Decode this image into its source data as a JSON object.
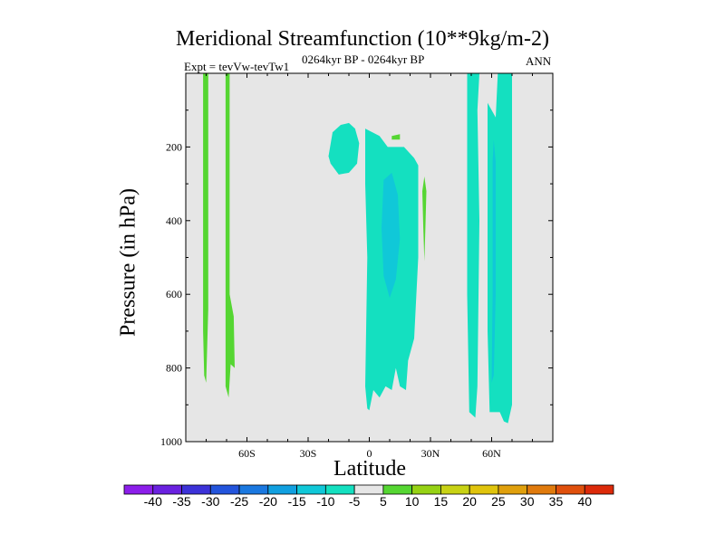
{
  "chart_data": {
    "type": "contour",
    "title": "Meridional Streamfunction (10**9kg/m-2)",
    "experiment_label": "Expt = tevVw-tevTw1",
    "date_range": "0264kyr BP - 0264kyr BP",
    "season": "ANN",
    "xlabel": "Latitude",
    "ylabel": "Pressure (in hPa)",
    "xlim": [
      -90,
      90
    ],
    "ylim": [
      1000,
      0
    ],
    "x_ticks": [
      {
        "value": -60,
        "label": "60S"
      },
      {
        "value": -30,
        "label": "30S"
      },
      {
        "value": 0,
        "label": "0"
      },
      {
        "value": 30,
        "label": "30N"
      },
      {
        "value": 60,
        "label": "60N"
      }
    ],
    "y_ticks": [
      {
        "value": 200,
        "label": "200"
      },
      {
        "value": 400,
        "label": "400"
      },
      {
        "value": 600,
        "label": "600"
      },
      {
        "value": 800,
        "label": "800"
      },
      {
        "value": 1000,
        "label": "1000"
      }
    ],
    "background_color": "#e6e6e6",
    "colorbar": {
      "levels": [
        -40,
        -35,
        -30,
        -25,
        -20,
        -15,
        -10,
        -5,
        5,
        10,
        15,
        20,
        25,
        30,
        35,
        40
      ],
      "labels": [
        "-40",
        "-35",
        "-30",
        "-25",
        "-20",
        "-15",
        "-10",
        "-5",
        "5",
        "10",
        "15",
        "20",
        "25",
        "30",
        "35",
        "40"
      ],
      "colors": [
        "#8c1eea",
        "#6a21e0",
        "#3c32d8",
        "#2354dc",
        "#1a78e0",
        "#11a0e0",
        "#10c8d8",
        "#14e0c0",
        "#e6e6e6",
        "#55d632",
        "#96d214",
        "#c8d214",
        "#e0c40c",
        "#e0a00c",
        "#e07a0c",
        "#e0500c",
        "#dc2a0a"
      ]
    },
    "regions": [
      {
        "name": "sh-polar-band-a",
        "level": "5 to 10",
        "color": "#55d632",
        "points": [
          [
            -81.5,
            0
          ],
          [
            -79,
            0
          ],
          [
            -79,
            640
          ],
          [
            -80,
            840
          ],
          [
            -81,
            820
          ],
          [
            -81.5,
            700
          ]
        ]
      },
      {
        "name": "sh-polar-band-b",
        "level": "5 to 10",
        "color": "#55d632",
        "points": [
          [
            -70.5,
            0
          ],
          [
            -68.5,
            0
          ],
          [
            -68.5,
            600
          ],
          [
            -66.5,
            660
          ],
          [
            -66,
            800
          ],
          [
            -68,
            790
          ],
          [
            -69,
            880
          ],
          [
            -70.5,
            850
          ]
        ]
      },
      {
        "name": "sh-subtropical-upper-cell",
        "level": "-10 to -5",
        "color": "#14e0c0",
        "points": [
          [
            -20,
            225
          ],
          [
            -18,
            160
          ],
          [
            -14,
            140
          ],
          [
            -10,
            135
          ],
          [
            -7,
            150
          ],
          [
            -5,
            190
          ],
          [
            -6,
            245
          ],
          [
            -10,
            270
          ],
          [
            -15,
            275
          ],
          [
            -19,
            245
          ]
        ]
      },
      {
        "name": "tropical-upper-green-dot",
        "level": "5 to 10",
        "color": "#55d632",
        "points": [
          [
            11,
            170
          ],
          [
            15,
            165
          ],
          [
            15,
            180
          ],
          [
            11,
            180
          ]
        ]
      },
      {
        "name": "tropical-main-cell-outer",
        "level": "-10 to -5",
        "color": "#14e0c0",
        "points": [
          [
            -2,
            150
          ],
          [
            5,
            170
          ],
          [
            9,
            200
          ],
          [
            17,
            200
          ],
          [
            22,
            230
          ],
          [
            24,
            250
          ],
          [
            24,
            500
          ],
          [
            22,
            720
          ],
          [
            19,
            780
          ],
          [
            18,
            860
          ],
          [
            15,
            850
          ],
          [
            13,
            800
          ],
          [
            11,
            860
          ],
          [
            8,
            850
          ],
          [
            5,
            880
          ],
          [
            2,
            860
          ],
          [
            0,
            915
          ],
          [
            -1,
            910
          ],
          [
            -2,
            850
          ],
          [
            -1,
            500
          ],
          [
            -2,
            300
          ]
        ]
      },
      {
        "name": "tropical-main-cell-inner",
        "level": "-15 to -10",
        "color": "#10c8d8",
        "points": [
          [
            7,
            290
          ],
          [
            11,
            270
          ],
          [
            14,
            330
          ],
          [
            15,
            450
          ],
          [
            13,
            560
          ],
          [
            10,
            610
          ],
          [
            7,
            550
          ],
          [
            6,
            420
          ]
        ]
      },
      {
        "name": "nh-tropical-green-sliver",
        "level": "5 to 10",
        "color": "#55d632",
        "points": [
          [
            27,
            280
          ],
          [
            28,
            320
          ],
          [
            27.5,
            420
          ],
          [
            27,
            510
          ],
          [
            26.5,
            420
          ],
          [
            26,
            320
          ]
        ]
      },
      {
        "name": "nh-midlat-band-a",
        "level": "-10 to -5",
        "color": "#14e0c0",
        "points": [
          [
            48,
            0
          ],
          [
            54,
            0
          ],
          [
            53,
            100
          ],
          [
            54,
            400
          ],
          [
            53,
            850
          ],
          [
            52,
            935
          ],
          [
            49,
            920
          ],
          [
            48,
            600
          ]
        ]
      },
      {
        "name": "nh-midlat-band-b",
        "level": "-10 to -5",
        "color": "#14e0c0",
        "points": [
          [
            58,
            80
          ],
          [
            62,
            120
          ],
          [
            63,
            0
          ],
          [
            70,
            0
          ],
          [
            70,
            900
          ],
          [
            68,
            950
          ],
          [
            66,
            945
          ],
          [
            64,
            920
          ],
          [
            59,
            920
          ],
          [
            58,
            700
          ]
        ]
      },
      {
        "name": "nh-midlat-band-b-inner",
        "level": "-15 to -10",
        "color": "#10c8d8",
        "points": [
          [
            61,
            180
          ],
          [
            62,
            240
          ],
          [
            62,
            600
          ],
          [
            61,
            820
          ],
          [
            60,
            840
          ],
          [
            60.5,
            600
          ],
          [
            60.5,
            240
          ]
        ]
      }
    ]
  }
}
